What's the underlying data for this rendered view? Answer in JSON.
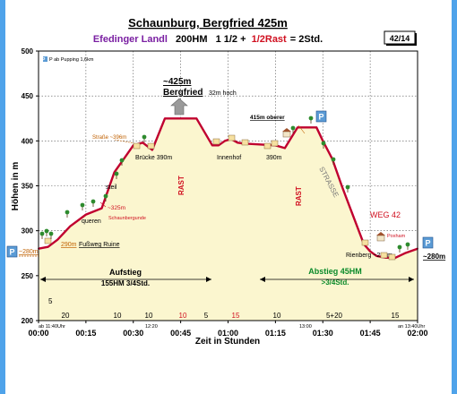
{
  "header": {
    "title": "Schaunburg, Bergfried 425m",
    "subtitle_region": "Efedinger Landl",
    "subtitle_hm": "200HM",
    "subtitle_time": "1 1/2 +",
    "subtitle_rast": "1/2Rast",
    "subtitle_total": "= 2Std.",
    "page_badge": "42/14"
  },
  "colors": {
    "fill": "#fbf6cf",
    "profile": "#c0002f",
    "rast": "#d01020",
    "return": "#0a8a2a",
    "frame": "#4fa3ea",
    "p_sign": "#5b9bd5"
  },
  "chart_data": {
    "type": "area",
    "title": "Schaunburg, Bergfried 425m",
    "xlabel": "Zeit in Stunden",
    "ylabel": "Höhen in m",
    "xlim": [
      0,
      120
    ],
    "ylim": [
      200,
      500
    ],
    "x_ticks": [
      0,
      15,
      30,
      45,
      60,
      75,
      90,
      105,
      120
    ],
    "x_tick_labels": [
      "00:00",
      "00:15",
      "00:30",
      "00:45",
      "01:00",
      "01:15",
      "01:30",
      "01:45",
      "02:00"
    ],
    "y_ticks": [
      200,
      250,
      300,
      350,
      400,
      450,
      500
    ],
    "grid": true,
    "series": [
      {
        "x": [
          0,
          3,
          6,
          10,
          15,
          20,
          24,
          28,
          30,
          33,
          36,
          40,
          44,
          47,
          50,
          55,
          57,
          59,
          61,
          63,
          65,
          70,
          75,
          78,
          82,
          85,
          88,
          90,
          93,
          96,
          99,
          103,
          105,
          107,
          110,
          113,
          116,
          120
        ],
        "y": [
          280,
          282,
          290,
          305,
          318,
          325,
          365,
          385,
          395,
          398,
          390,
          425,
          425,
          425,
          425,
          395,
          395,
          400,
          402,
          398,
          397,
          396,
          395,
          392,
          415,
          415,
          415,
          400,
          380,
          350,
          322,
          285,
          277,
          272,
          270,
          270,
          275,
          280
        ]
      }
    ],
    "annotations": {
      "parking_top": "P ab Pupping 1,6km",
      "start_alt": "~280m",
      "end_alt": "~280m",
      "ruine_alt": "290m",
      "ruine": "Fußweg Ruine",
      "queren": "queren",
      "schaunbergunde_alt": "~325m",
      "schaunbergunde": "Schaunbergunde",
      "strasse_alt": "Straße ~396m",
      "steil": "steil",
      "bruecke": "Brücke 390m",
      "rast_1": "RAST",
      "bergfried_alt": "~425m",
      "bergfried": "Bergfried",
      "bergfried_note": "32m hoch",
      "innenhof": "Innenhof",
      "alt_390": "390m",
      "oberer": "415m oberer",
      "rast_2": "RAST",
      "strasse_slope": "STRASSE",
      "weg": "WEG 42",
      "poxham": "Poxham",
      "rienberg": "Rienberg ~290m",
      "aufstieg_title": "Aufstieg",
      "aufstieg_detail": "155HM   3/4Std.",
      "abstieg_title": "Abstieg 45HM",
      "abstieg_detail": ">3/4Std.",
      "seg_5": "5",
      "seg_20": "20",
      "seg_10a": "10",
      "seg_10b": "10",
      "seg_10r": "10",
      "seg_5b": "5",
      "seg_15r": "15",
      "seg_10c": "10",
      "seg_5_20": "5+20",
      "seg_15b": "15",
      "t_start": "ab 11:40Uhr",
      "t_1220": "12:20",
      "t_1300": "13:00",
      "t_end": "an 13:40Uhr",
      "p_letter": "P"
    }
  }
}
